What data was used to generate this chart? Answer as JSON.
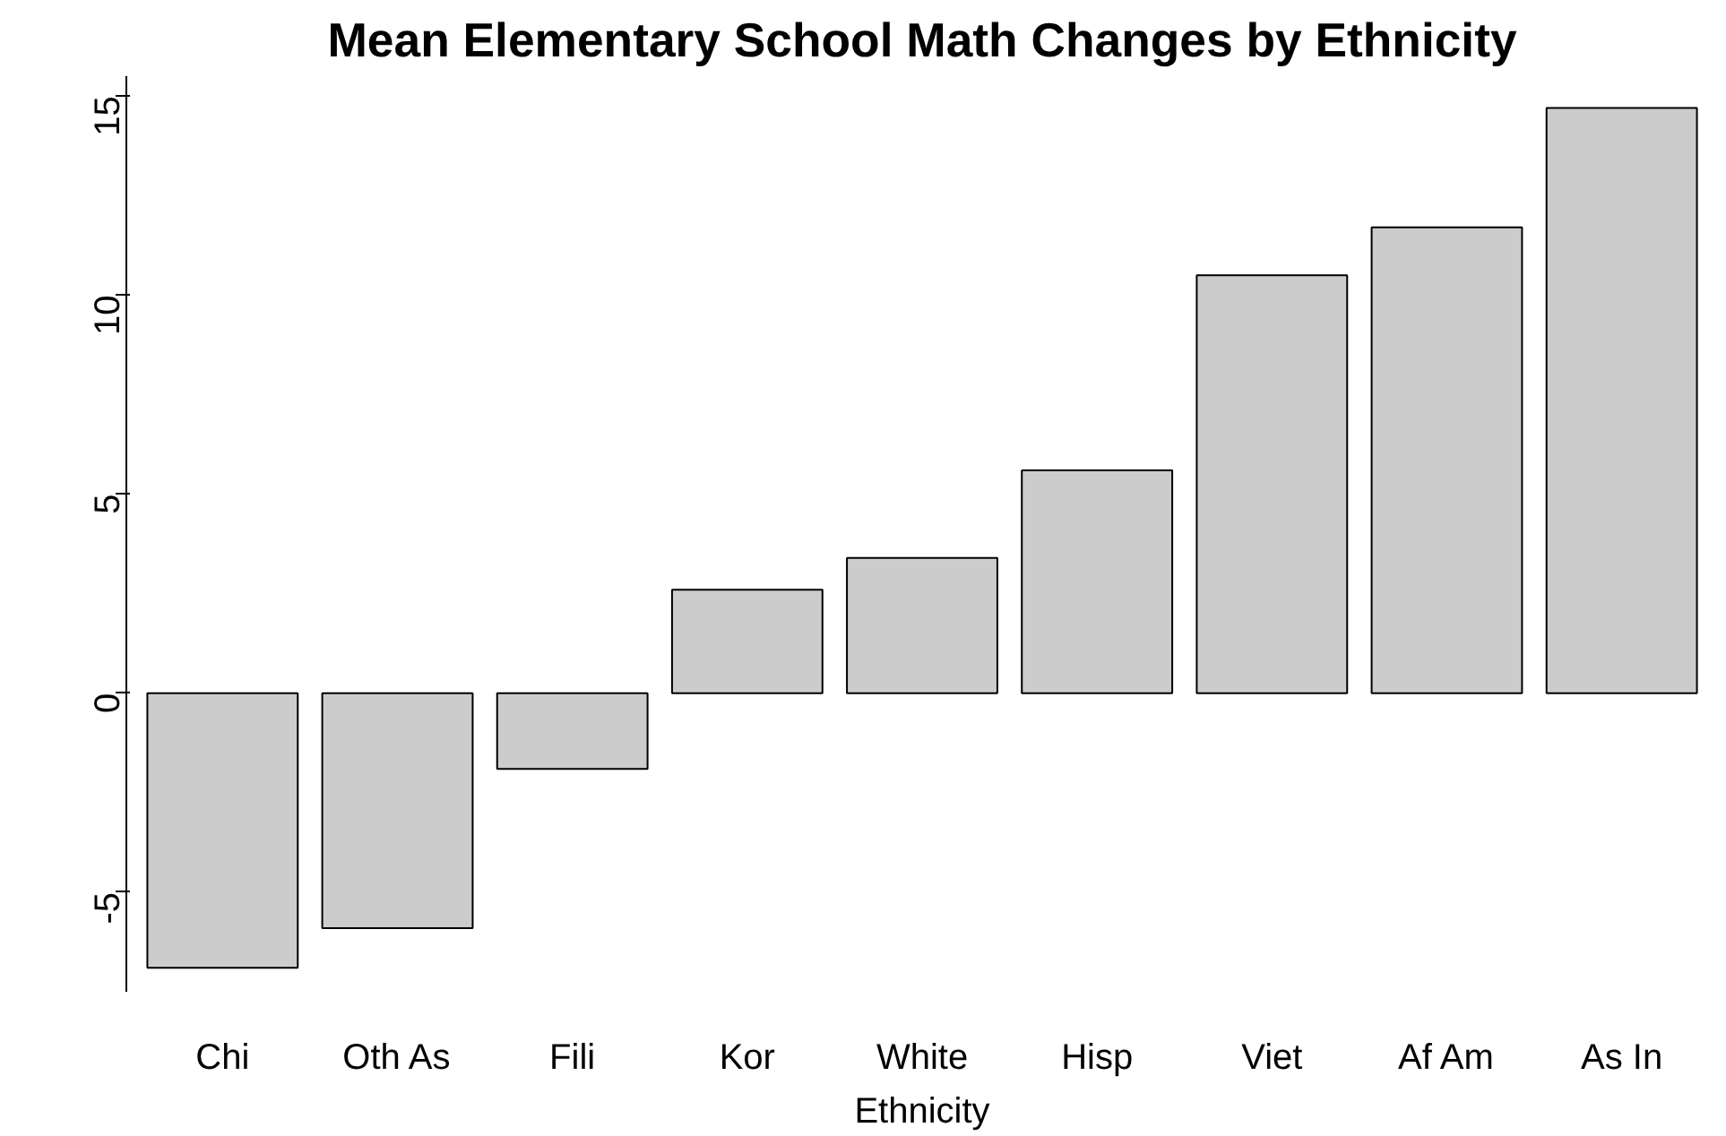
{
  "chart_data": {
    "type": "bar",
    "title": "Mean Elementary School Math Changes by Ethnicity",
    "xlabel": "Ethnicity",
    "categories": [
      "Chi",
      "Oth As",
      "Fili",
      "Kor",
      "White",
      "Hisp",
      "Viet",
      "Af Am",
      "As In"
    ],
    "values": [
      -6.9,
      -5.9,
      -1.9,
      2.6,
      3.4,
      5.6,
      10.5,
      11.7,
      14.7
    ],
    "color": "#cccccc",
    "ylim": [
      -7.5,
      15.5
    ],
    "yticks": [
      -5,
      0,
      5,
      10,
      15
    ],
    "grid": false
  }
}
